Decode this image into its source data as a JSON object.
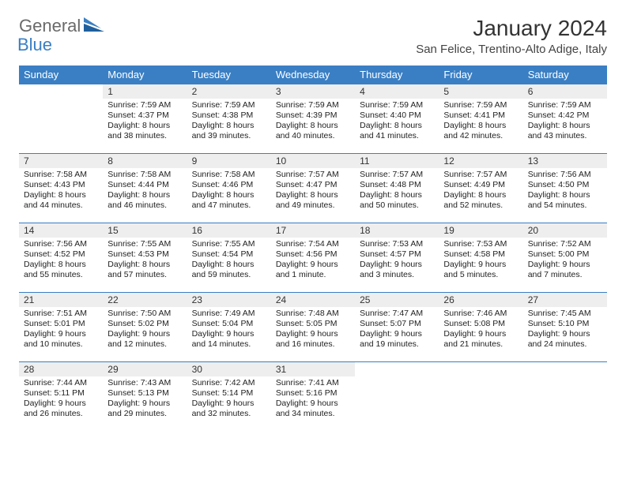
{
  "brand": {
    "part1": "General",
    "part2": "Blue"
  },
  "title": "January 2024",
  "location": "San Felice, Trentino-Alto Adige, Italy",
  "colors": {
    "header_bg": "#3a7fc4",
    "header_text": "#ffffff",
    "daynum_bg": "#eeeeee",
    "rule": "#3a7fc4",
    "text": "#222222",
    "logo_gray": "#6a6a6a",
    "logo_blue": "#3a7fc4",
    "page_bg": "#ffffff"
  },
  "typography": {
    "month_title_pt": 28,
    "location_pt": 15,
    "weekday_pt": 13,
    "daynum_pt": 12,
    "body_pt": 10.5,
    "font_family": "Arial"
  },
  "weekdays": [
    "Sunday",
    "Monday",
    "Tuesday",
    "Wednesday",
    "Thursday",
    "Friday",
    "Saturday"
  ],
  "weeks": [
    [
      {
        "n": "",
        "lines": []
      },
      {
        "n": "1",
        "lines": [
          "Sunrise: 7:59 AM",
          "Sunset: 4:37 PM",
          "Daylight: 8 hours",
          "and 38 minutes."
        ]
      },
      {
        "n": "2",
        "lines": [
          "Sunrise: 7:59 AM",
          "Sunset: 4:38 PM",
          "Daylight: 8 hours",
          "and 39 minutes."
        ]
      },
      {
        "n": "3",
        "lines": [
          "Sunrise: 7:59 AM",
          "Sunset: 4:39 PM",
          "Daylight: 8 hours",
          "and 40 minutes."
        ]
      },
      {
        "n": "4",
        "lines": [
          "Sunrise: 7:59 AM",
          "Sunset: 4:40 PM",
          "Daylight: 8 hours",
          "and 41 minutes."
        ]
      },
      {
        "n": "5",
        "lines": [
          "Sunrise: 7:59 AM",
          "Sunset: 4:41 PM",
          "Daylight: 8 hours",
          "and 42 minutes."
        ]
      },
      {
        "n": "6",
        "lines": [
          "Sunrise: 7:59 AM",
          "Sunset: 4:42 PM",
          "Daylight: 8 hours",
          "and 43 minutes."
        ]
      }
    ],
    [
      {
        "n": "7",
        "lines": [
          "Sunrise: 7:58 AM",
          "Sunset: 4:43 PM",
          "Daylight: 8 hours",
          "and 44 minutes."
        ]
      },
      {
        "n": "8",
        "lines": [
          "Sunrise: 7:58 AM",
          "Sunset: 4:44 PM",
          "Daylight: 8 hours",
          "and 46 minutes."
        ]
      },
      {
        "n": "9",
        "lines": [
          "Sunrise: 7:58 AM",
          "Sunset: 4:46 PM",
          "Daylight: 8 hours",
          "and 47 minutes."
        ]
      },
      {
        "n": "10",
        "lines": [
          "Sunrise: 7:57 AM",
          "Sunset: 4:47 PM",
          "Daylight: 8 hours",
          "and 49 minutes."
        ]
      },
      {
        "n": "11",
        "lines": [
          "Sunrise: 7:57 AM",
          "Sunset: 4:48 PM",
          "Daylight: 8 hours",
          "and 50 minutes."
        ]
      },
      {
        "n": "12",
        "lines": [
          "Sunrise: 7:57 AM",
          "Sunset: 4:49 PM",
          "Daylight: 8 hours",
          "and 52 minutes."
        ]
      },
      {
        "n": "13",
        "lines": [
          "Sunrise: 7:56 AM",
          "Sunset: 4:50 PM",
          "Daylight: 8 hours",
          "and 54 minutes."
        ]
      }
    ],
    [
      {
        "n": "14",
        "lines": [
          "Sunrise: 7:56 AM",
          "Sunset: 4:52 PM",
          "Daylight: 8 hours",
          "and 55 minutes."
        ]
      },
      {
        "n": "15",
        "lines": [
          "Sunrise: 7:55 AM",
          "Sunset: 4:53 PM",
          "Daylight: 8 hours",
          "and 57 minutes."
        ]
      },
      {
        "n": "16",
        "lines": [
          "Sunrise: 7:55 AM",
          "Sunset: 4:54 PM",
          "Daylight: 8 hours",
          "and 59 minutes."
        ]
      },
      {
        "n": "17",
        "lines": [
          "Sunrise: 7:54 AM",
          "Sunset: 4:56 PM",
          "Daylight: 9 hours",
          "and 1 minute."
        ]
      },
      {
        "n": "18",
        "lines": [
          "Sunrise: 7:53 AM",
          "Sunset: 4:57 PM",
          "Daylight: 9 hours",
          "and 3 minutes."
        ]
      },
      {
        "n": "19",
        "lines": [
          "Sunrise: 7:53 AM",
          "Sunset: 4:58 PM",
          "Daylight: 9 hours",
          "and 5 minutes."
        ]
      },
      {
        "n": "20",
        "lines": [
          "Sunrise: 7:52 AM",
          "Sunset: 5:00 PM",
          "Daylight: 9 hours",
          "and 7 minutes."
        ]
      }
    ],
    [
      {
        "n": "21",
        "lines": [
          "Sunrise: 7:51 AM",
          "Sunset: 5:01 PM",
          "Daylight: 9 hours",
          "and 10 minutes."
        ]
      },
      {
        "n": "22",
        "lines": [
          "Sunrise: 7:50 AM",
          "Sunset: 5:02 PM",
          "Daylight: 9 hours",
          "and 12 minutes."
        ]
      },
      {
        "n": "23",
        "lines": [
          "Sunrise: 7:49 AM",
          "Sunset: 5:04 PM",
          "Daylight: 9 hours",
          "and 14 minutes."
        ]
      },
      {
        "n": "24",
        "lines": [
          "Sunrise: 7:48 AM",
          "Sunset: 5:05 PM",
          "Daylight: 9 hours",
          "and 16 minutes."
        ]
      },
      {
        "n": "25",
        "lines": [
          "Sunrise: 7:47 AM",
          "Sunset: 5:07 PM",
          "Daylight: 9 hours",
          "and 19 minutes."
        ]
      },
      {
        "n": "26",
        "lines": [
          "Sunrise: 7:46 AM",
          "Sunset: 5:08 PM",
          "Daylight: 9 hours",
          "and 21 minutes."
        ]
      },
      {
        "n": "27",
        "lines": [
          "Sunrise: 7:45 AM",
          "Sunset: 5:10 PM",
          "Daylight: 9 hours",
          "and 24 minutes."
        ]
      }
    ],
    [
      {
        "n": "28",
        "lines": [
          "Sunrise: 7:44 AM",
          "Sunset: 5:11 PM",
          "Daylight: 9 hours",
          "and 26 minutes."
        ]
      },
      {
        "n": "29",
        "lines": [
          "Sunrise: 7:43 AM",
          "Sunset: 5:13 PM",
          "Daylight: 9 hours",
          "and 29 minutes."
        ]
      },
      {
        "n": "30",
        "lines": [
          "Sunrise: 7:42 AM",
          "Sunset: 5:14 PM",
          "Daylight: 9 hours",
          "and 32 minutes."
        ]
      },
      {
        "n": "31",
        "lines": [
          "Sunrise: 7:41 AM",
          "Sunset: 5:16 PM",
          "Daylight: 9 hours",
          "and 34 minutes."
        ]
      },
      {
        "n": "",
        "lines": []
      },
      {
        "n": "",
        "lines": []
      },
      {
        "n": "",
        "lines": []
      }
    ]
  ]
}
